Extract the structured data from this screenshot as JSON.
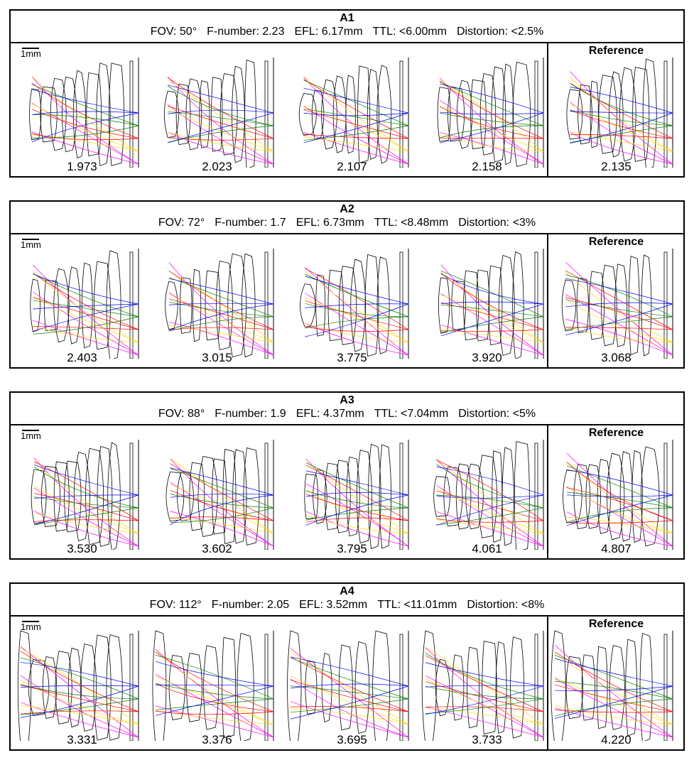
{
  "scale_label": "1mm",
  "reference_label": "Reference",
  "ray_colors": [
    "#ff00ff",
    "#ffd700",
    "#ff0000",
    "#008000",
    "#0000ff"
  ],
  "panels": [
    {
      "title": "A1",
      "params": {
        "fov": "FOV: 50°",
        "fnum": "F-number: 2.23",
        "efl": "EFL: 6.17mm",
        "ttl": "TTL: <6.00mm",
        "dist": "Distortion: <2.5%"
      },
      "scores": [
        "1.973",
        "2.023",
        "2.107",
        "2.158"
      ],
      "reference_score": "2.135"
    },
    {
      "title": "A2",
      "params": {
        "fov": "FOV: 72°",
        "fnum": "F-number: 1.7",
        "efl": "EFL: 6.73mm",
        "ttl": "TTL: <8.48mm",
        "dist": "Distortion: <3%"
      },
      "scores": [
        "2.403",
        "3.015",
        "3.775",
        "3.920"
      ],
      "reference_score": "3.068"
    },
    {
      "title": "A3",
      "params": {
        "fov": "FOV: 88°",
        "fnum": "F-number: 1.9",
        "efl": "EFL: 4.37mm",
        "ttl": "TTL: <7.04mm",
        "dist": "Distortion: <5%"
      },
      "scores": [
        "3.530",
        "3.602",
        "3.795",
        "4.061"
      ],
      "reference_score": "4.807"
    },
    {
      "title": "A4",
      "params": {
        "fov": "FOV: 112°",
        "fnum": "F-number: 2.05",
        "efl": "EFL: 3.52mm",
        "ttl": "TTL: <11.01mm",
        "dist": "Distortion: <8%"
      },
      "scores": [
        "3.331",
        "3.376",
        "3.695",
        "3.733"
      ],
      "reference_score": "4.220"
    }
  ]
}
